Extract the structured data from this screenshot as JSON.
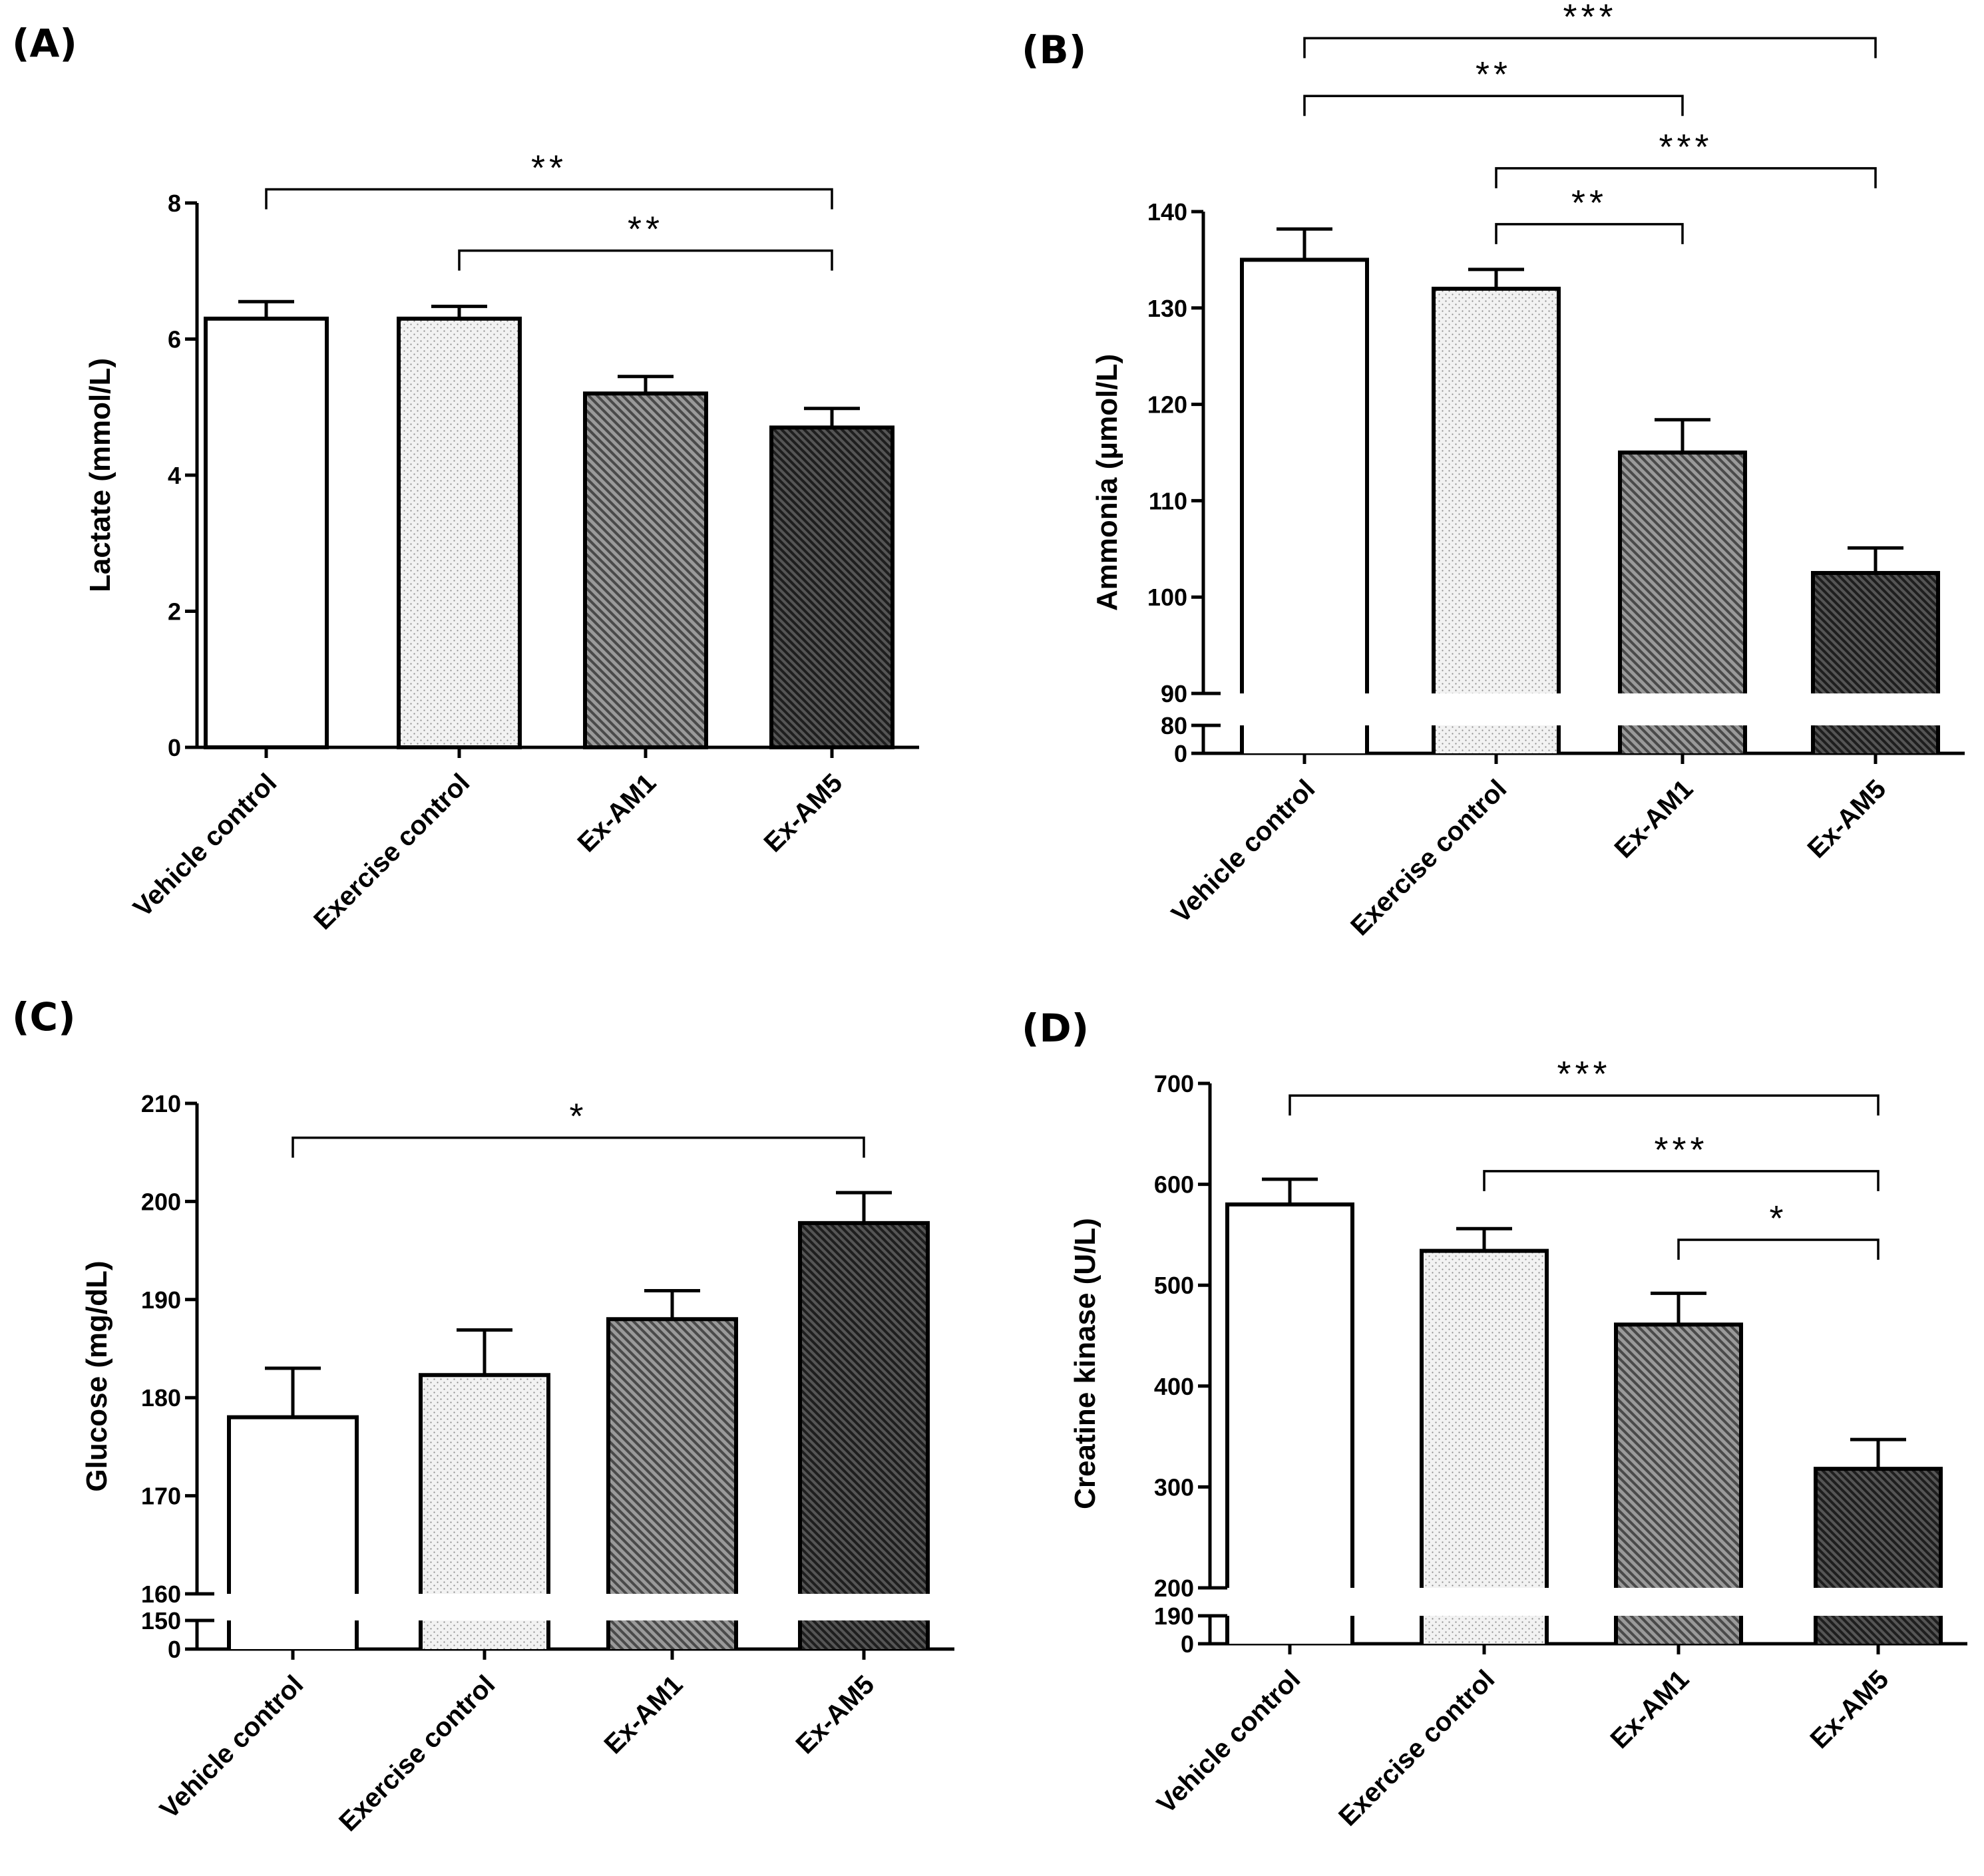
{
  "figure": {
    "panel_labels": [
      "(A)",
      "(B)",
      "(C)",
      "(D)"
    ]
  },
  "styles": {
    "bar_outline": "#000000",
    "fills": {
      "vehicle": "#ffffff",
      "exercise": "#f2f2f2",
      "am1": "#7a7a7a",
      "am5": "#3a3a3a"
    }
  },
  "chart_data": [
    {
      "panel": "(A)",
      "type": "bar",
      "ylabel": "Lactate (mmol/L)",
      "categories": [
        "Vehicle control",
        "Exercise control",
        "Ex-AM1",
        "Ex-AM5"
      ],
      "values": [
        6.3,
        6.3,
        5.2,
        4.7
      ],
      "errors": [
        0.25,
        0.18,
        0.25,
        0.28
      ],
      "fills": [
        "vehicle",
        "exercise",
        "am1",
        "am5"
      ],
      "ylim": [
        0,
        8
      ],
      "yticks": [
        0,
        2,
        4,
        6,
        8
      ],
      "tick_labels": [
        "0",
        "2",
        "4",
        "6",
        "8"
      ],
      "break": null,
      "significance": [
        {
          "from": 0,
          "to": 3,
          "label": "**",
          "level": 8.2
        },
        {
          "from": 1,
          "to": 3,
          "label": "**",
          "level": 7.3
        }
      ]
    },
    {
      "panel": "(B)",
      "type": "bar",
      "ylabel": "Ammonia (μmol/L)",
      "categories": [
        "Vehicle control",
        "Exercise control",
        "Ex-AM1",
        "Ex-AM5"
      ],
      "values": [
        135,
        132,
        115,
        102.5
      ],
      "errors": [
        3.2,
        2.0,
        3.4,
        2.6
      ],
      "fills": [
        "vehicle",
        "exercise",
        "am1",
        "am5"
      ],
      "ylim": [
        0,
        140
      ],
      "yticks": [
        0,
        80,
        90,
        100,
        110,
        120,
        130,
        140
      ],
      "tick_labels": [
        "0",
        "80",
        "90",
        "100",
        "110",
        "120",
        "130",
        "140"
      ],
      "break": {
        "lower": [
          0,
          80
        ],
        "upper": [
          90,
          140
        ]
      },
      "significance": [
        {
          "from": 0,
          "to": 3,
          "label": "***",
          "level": 158
        },
        {
          "from": 0,
          "to": 2,
          "label": "**",
          "level": 152
        },
        {
          "from": 1,
          "to": 3,
          "label": "***",
          "level": 144.5
        },
        {
          "from": 1,
          "to": 2,
          "label": "**",
          "level": 138.7
        }
      ]
    },
    {
      "panel": "(C)",
      "type": "bar",
      "ylabel": "Glucose (mg/dL)",
      "categories": [
        "Vehicle control",
        "Exercise control",
        "Ex-AM1",
        "Ex-AM5"
      ],
      "values": [
        178,
        182.3,
        188,
        197.8
      ],
      "errors": [
        5.0,
        4.6,
        2.9,
        3.1
      ],
      "fills": [
        "vehicle",
        "exercise",
        "am1",
        "am5"
      ],
      "ylim": [
        0,
        210
      ],
      "yticks": [
        0,
        150,
        160,
        170,
        180,
        190,
        200,
        210
      ],
      "tick_labels": [
        "0",
        "150",
        "160",
        "170",
        "180",
        "190",
        "200",
        "210"
      ],
      "break": {
        "lower": [
          0,
          150
        ],
        "upper": [
          160,
          210
        ]
      },
      "significance": [
        {
          "from": 0,
          "to": 3,
          "label": "*",
          "level": 206.5
        }
      ]
    },
    {
      "panel": "(D)",
      "type": "bar",
      "ylabel": "Creatine kinase (U/L)",
      "categories": [
        "Vehicle control",
        "Exercise control",
        "Ex-AM1",
        "Ex-AM5"
      ],
      "values": [
        580,
        534,
        461,
        318
      ],
      "errors": [
        25,
        22,
        31,
        29
      ],
      "fills": [
        "vehicle",
        "exercise",
        "am1",
        "am5"
      ],
      "ylim": [
        0,
        700
      ],
      "yticks": [
        0,
        190,
        200,
        300,
        400,
        500,
        600,
        700
      ],
      "tick_labels": [
        "0",
        "190",
        "200",
        "300",
        "400",
        "500",
        "600",
        "700"
      ],
      "break": {
        "lower": [
          0,
          190
        ],
        "upper": [
          200,
          700
        ]
      },
      "significance": [
        {
          "from": 0,
          "to": 3,
          "label": "***",
          "level": 688
        },
        {
          "from": 1,
          "to": 3,
          "label": "***",
          "level": 613
        },
        {
          "from": 2,
          "to": 3,
          "label": "*",
          "level": 545
        }
      ]
    }
  ]
}
